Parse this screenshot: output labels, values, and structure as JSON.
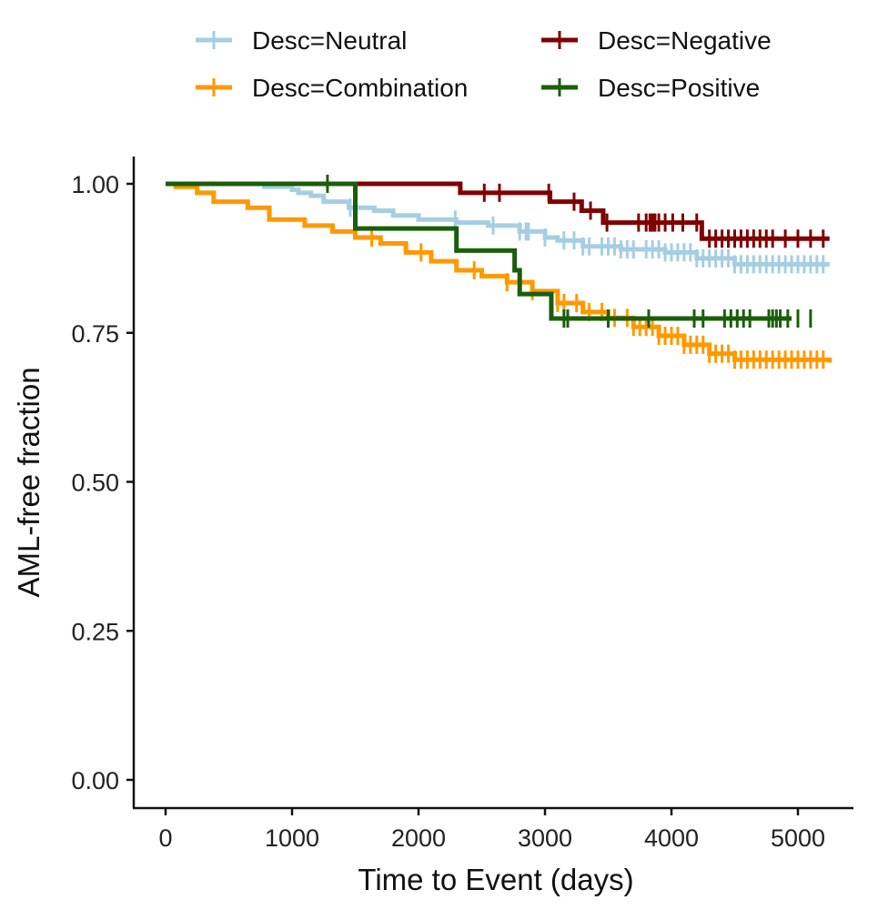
{
  "chart_data": {
    "type": "line",
    "subtype": "kaplan-meier step",
    "title": "",
    "xlabel": "Time to Event (days)",
    "ylabel": "AML-free fraction",
    "xlim": [
      -250,
      5250
    ],
    "ylim": [
      -0.04,
      1.05
    ],
    "xticks": [
      0,
      1000,
      2000,
      3000,
      4000,
      5000
    ],
    "xtick_labels": [
      "0",
      "1000",
      "2000",
      "3000",
      "4000",
      "5000"
    ],
    "yticks": [
      0,
      0.25,
      0.5,
      0.75,
      1.0
    ],
    "ytick_labels": [
      "0.00",
      "0.25",
      "0.50",
      "0.75",
      "1.00"
    ],
    "grid": false,
    "legend_position": "top",
    "series": [
      {
        "name": "Desc=Neutral",
        "color": "#a6cee3",
        "steps": [
          [
            0,
            1.0
          ],
          [
            780,
            0.995
          ],
          [
            1000,
            0.99
          ],
          [
            1050,
            0.985
          ],
          [
            1150,
            0.98
          ],
          [
            1250,
            0.97
          ],
          [
            1450,
            0.96
          ],
          [
            1650,
            0.955
          ],
          [
            1800,
            0.947
          ],
          [
            2000,
            0.94
          ],
          [
            2300,
            0.935
          ],
          [
            2550,
            0.93
          ],
          [
            2800,
            0.92
          ],
          [
            3000,
            0.91
          ],
          [
            3100,
            0.905
          ],
          [
            3300,
            0.895
          ],
          [
            3600,
            0.89
          ],
          [
            3950,
            0.885
          ],
          [
            4200,
            0.875
          ],
          [
            4500,
            0.865
          ],
          [
            5250,
            0.865
          ]
        ],
        "censor_times": [
          1460,
          2290,
          2590,
          2800,
          2850,
          2870,
          3000,
          3150,
          3230,
          3300,
          3350,
          3450,
          3500,
          3550,
          3600,
          3650,
          3700,
          3800,
          3850,
          3900,
          3950,
          4000,
          4050,
          4100,
          4150,
          4200,
          4250,
          4300,
          4350,
          4400,
          4450,
          4500,
          4550,
          4600,
          4650,
          4700,
          4750,
          4800,
          4850,
          4900,
          4950,
          5000,
          5050,
          5100,
          5150,
          5200
        ]
      },
      {
        "name": "Desc=Negative",
        "color": "#7f0000",
        "steps": [
          [
            1450,
            1.0
          ],
          [
            2330,
            0.985
          ],
          [
            3040,
            0.97
          ],
          [
            3090,
            0.97
          ],
          [
            3290,
            0.955
          ],
          [
            3460,
            0.935
          ],
          [
            4240,
            0.908
          ],
          [
            5250,
            0.908
          ]
        ],
        "censor_times": [
          2520,
          2640,
          3030,
          3230,
          3360,
          3490,
          3740,
          3800,
          3830,
          3850,
          3870,
          3900,
          3950,
          4010,
          4090,
          4200,
          4300,
          4350,
          4400,
          4450,
          4500,
          4550,
          4600,
          4650,
          4700,
          4750,
          4800,
          4900,
          5000,
          5100,
          5200
        ]
      },
      {
        "name": "Desc=Combination",
        "color": "#ff9900",
        "steps": [
          [
            0,
            1.0
          ],
          [
            80,
            0.995
          ],
          [
            250,
            0.985
          ],
          [
            380,
            0.97
          ],
          [
            650,
            0.96
          ],
          [
            820,
            0.94
          ],
          [
            1100,
            0.93
          ],
          [
            1320,
            0.92
          ],
          [
            1500,
            0.91
          ],
          [
            1700,
            0.9
          ],
          [
            1900,
            0.885
          ],
          [
            2100,
            0.87
          ],
          [
            2300,
            0.855
          ],
          [
            2500,
            0.845
          ],
          [
            2700,
            0.835
          ],
          [
            2900,
            0.82
          ],
          [
            3100,
            0.8
          ],
          [
            3300,
            0.785
          ],
          [
            3500,
            0.775
          ],
          [
            3700,
            0.76
          ],
          [
            3900,
            0.745
          ],
          [
            4100,
            0.73
          ],
          [
            4300,
            0.715
          ],
          [
            4500,
            0.705
          ],
          [
            5250,
            0.7
          ]
        ],
        "censor_times": [
          1630,
          2020,
          2440,
          2700,
          2900,
          3100,
          3150,
          3250,
          3350,
          3450,
          3550,
          3650,
          3700,
          3750,
          3800,
          3850,
          3900,
          3950,
          4000,
          4050,
          4100,
          4150,
          4200,
          4250,
          4300,
          4350,
          4400,
          4450,
          4500,
          4550,
          4600,
          4650,
          4700,
          4750,
          4800,
          4850,
          4900,
          4950,
          5000,
          5050,
          5100,
          5150,
          5200
        ]
      },
      {
        "name": "Desc=Positive",
        "color": "#1a5e0a",
        "steps": [
          [
            0,
            1.0
          ],
          [
            1500,
            0.925
          ],
          [
            2300,
            0.888
          ],
          [
            2500,
            0.888
          ],
          [
            2760,
            0.855
          ],
          [
            2800,
            0.815
          ],
          [
            3050,
            0.774
          ],
          [
            4950,
            0.774
          ]
        ],
        "censor_times": [
          1280,
          3150,
          3180,
          3500,
          3820,
          4180,
          4250,
          4420,
          4470,
          4520,
          4570,
          4620,
          4770,
          4800,
          4830,
          4860,
          4920,
          5000,
          5100
        ]
      }
    ]
  }
}
